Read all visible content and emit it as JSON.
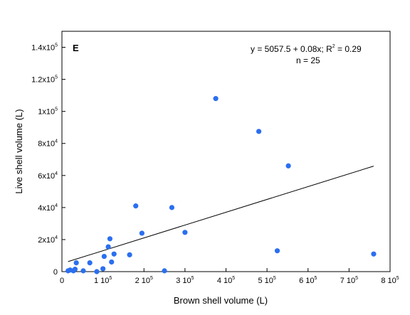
{
  "chart_data": {
    "type": "scatter",
    "panel_label": "E",
    "xlabel": "Brown shell volume (L)",
    "ylabel": "Live shell volume (L)",
    "xlim": [
      0,
      800000
    ],
    "ylim": [
      0,
      150000
    ],
    "x_ticks": [
      {
        "value": 0,
        "base": "0",
        "exp": ""
      },
      {
        "value": 100000,
        "base": "1 10",
        "exp": "5"
      },
      {
        "value": 200000,
        "base": "2 10",
        "exp": "5"
      },
      {
        "value": 300000,
        "base": "3 10",
        "exp": "5"
      },
      {
        "value": 400000,
        "base": "4 10",
        "exp": "5"
      },
      {
        "value": 500000,
        "base": "5 10",
        "exp": "5"
      },
      {
        "value": 600000,
        "base": "6 10",
        "exp": "5"
      },
      {
        "value": 700000,
        "base": "7 10",
        "exp": "5"
      },
      {
        "value": 800000,
        "base": "8 10",
        "exp": "5"
      }
    ],
    "y_ticks": [
      {
        "value": 0,
        "base": "0",
        "exp": ""
      },
      {
        "value": 20000,
        "base": "2x10",
        "exp": "4"
      },
      {
        "value": 40000,
        "base": "4x10",
        "exp": "4"
      },
      {
        "value": 60000,
        "base": "6x10",
        "exp": "4"
      },
      {
        "value": 80000,
        "base": "8x10",
        "exp": "4"
      },
      {
        "value": 100000,
        "base": "1x10",
        "exp": "5"
      },
      {
        "value": 120000,
        "base": "1.2x10",
        "exp": "5"
      },
      {
        "value": 140000,
        "base": "1.4x10",
        "exp": "5"
      }
    ],
    "equation": {
      "prefix": "y = 5057.5 + 0.08x; R",
      "exp": "2",
      "suffix": " = 0.29"
    },
    "n_label": "n = 25",
    "regression": {
      "intercept": 5057.5,
      "slope": 0.08,
      "x_start": 15000,
      "x_end": 760000
    },
    "point_color": "#2b6ff0",
    "points": [
      {
        "x": 15000,
        "y": 500
      },
      {
        "x": 20000,
        "y": 1000
      },
      {
        "x": 28000,
        "y": 500
      },
      {
        "x": 32000,
        "y": 1500
      },
      {
        "x": 35000,
        "y": 5500
      },
      {
        "x": 52000,
        "y": 500
      },
      {
        "x": 68000,
        "y": 5500
      },
      {
        "x": 85000,
        "y": 0
      },
      {
        "x": 100000,
        "y": 1800
      },
      {
        "x": 103000,
        "y": 9500
      },
      {
        "x": 113000,
        "y": 15500
      },
      {
        "x": 117000,
        "y": 20500
      },
      {
        "x": 121000,
        "y": 6000
      },
      {
        "x": 127000,
        "y": 11000
      },
      {
        "x": 165000,
        "y": 10500
      },
      {
        "x": 180000,
        "y": 41000
      },
      {
        "x": 195000,
        "y": 24000
      },
      {
        "x": 250000,
        "y": 500
      },
      {
        "x": 268000,
        "y": 40000
      },
      {
        "x": 300000,
        "y": 24500
      },
      {
        "x": 375000,
        "y": 108000
      },
      {
        "x": 480000,
        "y": 87500
      },
      {
        "x": 525000,
        "y": 13000
      },
      {
        "x": 552000,
        "y": 66000
      },
      {
        "x": 760000,
        "y": 11000
      }
    ]
  }
}
